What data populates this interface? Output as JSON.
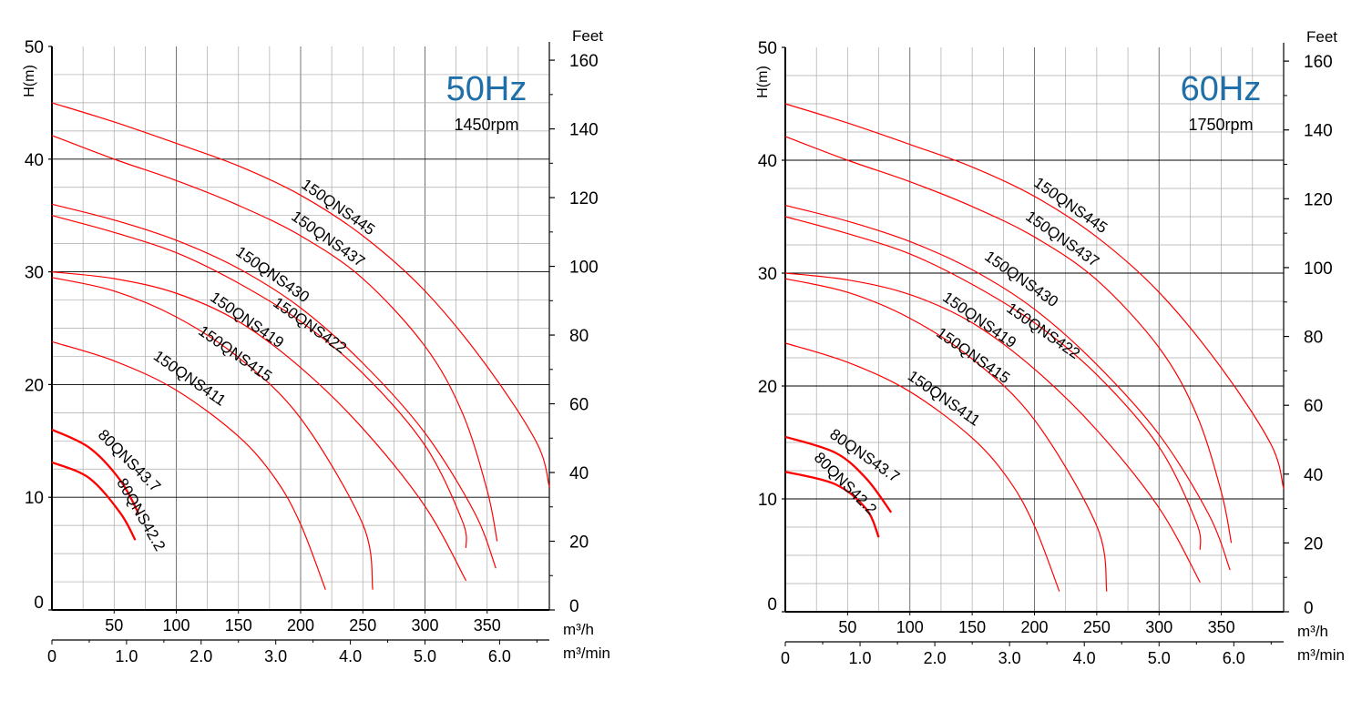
{
  "chart_data": [
    {
      "type": "line",
      "badge": "50Hz",
      "rpm": "1450rpm",
      "ylabel": "H(m)",
      "ylabel_right": "Feet",
      "xlabel": "m³/h",
      "xlabel_secondary": "m³/min",
      "xlim": [
        0,
        400
      ],
      "ylim": [
        0,
        50
      ],
      "y2lim": [
        0,
        164
      ],
      "grid": true,
      "x_ticks": [
        "50",
        "100",
        "150",
        "200",
        "250",
        "300",
        "350"
      ],
      "x_tick_values": [
        50,
        100,
        150,
        200,
        250,
        300,
        350
      ],
      "x2_ticks": [
        "0",
        "1.0",
        "2.0",
        "3.0",
        "4.0",
        "5.0",
        "6.0"
      ],
      "x2_tick_values": [
        0,
        1,
        2,
        3,
        4,
        5,
        6
      ],
      "y_ticks": [
        "0",
        "10",
        "20",
        "30",
        "40",
        "50"
      ],
      "y_tick_values": [
        0,
        10,
        20,
        30,
        40,
        50
      ],
      "y2_ticks": [
        "0",
        "20",
        "40",
        "60",
        "80",
        "100",
        "120",
        "140",
        "160"
      ],
      "y2_tick_values": [
        0,
        20,
        40,
        60,
        80,
        100,
        120,
        140,
        160
      ],
      "series": [
        {
          "name": "150QNS445",
          "color": "#ff0000",
          "width": 1.2,
          "x": [
            0,
            50,
            100,
            150,
            200,
            250,
            300,
            350,
            390,
            400
          ],
          "y": [
            45,
            43.3,
            41.4,
            39.4,
            36.8,
            33.2,
            28.3,
            21.6,
            14.8,
            10.9
          ]
        },
        {
          "name": "150QNS437",
          "color": "#ff0000",
          "width": 1.2,
          "x": [
            0,
            50,
            100,
            150,
            200,
            250,
            300,
            330,
            350,
            358
          ],
          "y": [
            42.1,
            40.0,
            38.1,
            35.9,
            33.2,
            29.4,
            23.4,
            17.5,
            10.6,
            6.1
          ]
        },
        {
          "name": "150QNS430",
          "color": "#ff0000",
          "width": 1.2,
          "x": [
            0,
            50,
            100,
            150,
            200,
            250,
            300,
            340,
            357
          ],
          "y": [
            36,
            34.6,
            32.8,
            30.3,
            26.8,
            21.9,
            15.7,
            8.6,
            3.7
          ]
        },
        {
          "name": "150QNS422",
          "color": "#ff0000",
          "width": 1.2,
          "x": [
            0,
            50,
            100,
            150,
            200,
            250,
            300,
            330,
            333
          ],
          "y": [
            35,
            33.5,
            31.7,
            29.0,
            25.6,
            21.0,
            14.6,
            7.9,
            5.5
          ]
        },
        {
          "name": "150QNS419",
          "color": "#ff0000",
          "width": 1.2,
          "x": [
            0,
            50,
            100,
            150,
            200,
            250,
            300,
            333
          ],
          "y": [
            30,
            29.4,
            28.1,
            25.6,
            21.5,
            16.1,
            9.2,
            2.6
          ]
        },
        {
          "name": "150QNS415",
          "color": "#ff0000",
          "width": 1.2,
          "x": [
            0,
            50,
            100,
            150,
            200,
            250,
            258
          ],
          "y": [
            29.5,
            28.3,
            26.0,
            22.4,
            17.0,
            7.6,
            1.8
          ]
        },
        {
          "name": "150QNS411",
          "color": "#ff0000",
          "width": 1.2,
          "x": [
            0,
            50,
            100,
            150,
            180,
            200,
            220
          ],
          "y": [
            23.8,
            22.1,
            19.5,
            15.4,
            11.6,
            7.6,
            1.8
          ]
        },
        {
          "name": "80QNS43.7",
          "color": "#ff0000",
          "width": 2.3,
          "x": [
            0,
            30,
            55,
            70
          ],
          "y": [
            16.0,
            14.4,
            11.5,
            8.5
          ]
        },
        {
          "name": "80QNS42.2",
          "color": "#ff0000",
          "width": 2.3,
          "x": [
            0,
            30,
            55,
            67
          ],
          "y": [
            13.1,
            11.7,
            8.6,
            6.2
          ]
        }
      ]
    },
    {
      "type": "line",
      "badge": "60Hz",
      "rpm": "1750rpm",
      "ylabel": "H(m)",
      "ylabel_right": "Feet",
      "xlabel": "m³/h",
      "xlabel_secondary": "m³/min",
      "xlim": [
        0,
        400
      ],
      "ylim": [
        0,
        50
      ],
      "y2lim": [
        0,
        164
      ],
      "grid": true,
      "x_ticks": [
        "50",
        "100",
        "150",
        "200",
        "250",
        "300",
        "350"
      ],
      "x_tick_values": [
        50,
        100,
        150,
        200,
        250,
        300,
        350
      ],
      "x2_ticks": [
        "0",
        "1.0",
        "2.0",
        "3.0",
        "4.0",
        "5.0",
        "6.0"
      ],
      "x2_tick_values": [
        0,
        1,
        2,
        3,
        4,
        5,
        6
      ],
      "y_ticks": [
        "0",
        "10",
        "20",
        "30",
        "40",
        "50"
      ],
      "y_tick_values": [
        0,
        10,
        20,
        30,
        40,
        50
      ],
      "y2_ticks": [
        "0",
        "20",
        "40",
        "60",
        "80",
        "100",
        "120",
        "140",
        "160"
      ],
      "y2_tick_values": [
        0,
        20,
        40,
        60,
        80,
        100,
        120,
        140,
        160
      ],
      "series": [
        {
          "name": "150QNS445",
          "color": "#ff0000",
          "width": 1.2,
          "x": [
            0,
            50,
            100,
            150,
            200,
            250,
            300,
            350,
            390,
            400
          ],
          "y": [
            45,
            43.3,
            41.4,
            39.4,
            36.8,
            33.2,
            28.3,
            21.6,
            14.8,
            10.9
          ]
        },
        {
          "name": "150QNS437",
          "color": "#ff0000",
          "width": 1.2,
          "x": [
            0,
            50,
            100,
            150,
            200,
            250,
            300,
            330,
            350,
            358
          ],
          "y": [
            42.1,
            40.0,
            38.1,
            35.9,
            33.2,
            29.4,
            23.4,
            17.5,
            10.6,
            6.1
          ]
        },
        {
          "name": "150QNS430",
          "color": "#ff0000",
          "width": 1.2,
          "x": [
            0,
            50,
            100,
            150,
            200,
            250,
            300,
            340,
            357
          ],
          "y": [
            36,
            34.6,
            32.8,
            30.3,
            26.8,
            21.9,
            15.7,
            8.6,
            3.7
          ]
        },
        {
          "name": "150QNS422",
          "color": "#ff0000",
          "width": 1.2,
          "x": [
            0,
            50,
            100,
            150,
            200,
            250,
            300,
            330,
            333
          ],
          "y": [
            35,
            33.5,
            31.7,
            29.0,
            25.6,
            21.0,
            14.6,
            7.9,
            5.5
          ]
        },
        {
          "name": "150QNS419",
          "color": "#ff0000",
          "width": 1.2,
          "x": [
            0,
            50,
            100,
            150,
            200,
            250,
            300,
            333
          ],
          "y": [
            30,
            29.4,
            28.1,
            25.6,
            21.5,
            16.1,
            9.2,
            2.6
          ]
        },
        {
          "name": "150QNS415",
          "color": "#ff0000",
          "width": 1.2,
          "x": [
            0,
            50,
            100,
            150,
            200,
            250,
            258
          ],
          "y": [
            29.5,
            28.3,
            26.0,
            22.4,
            17.0,
            7.6,
            1.8
          ]
        },
        {
          "name": "150QNS411",
          "color": "#ff0000",
          "width": 1.2,
          "x": [
            0,
            50,
            100,
            150,
            180,
            200,
            220
          ],
          "y": [
            23.8,
            22.1,
            19.5,
            15.4,
            11.6,
            7.6,
            1.8
          ]
        },
        {
          "name": "80QNS43.7",
          "color": "#ff0000",
          "width": 2.3,
          "x": [
            0,
            40,
            65,
            85
          ],
          "y": [
            15.5,
            14.1,
            11.8,
            8.8
          ]
        },
        {
          "name": "80QNS42.2",
          "color": "#ff0000",
          "width": 2.3,
          "x": [
            0,
            40,
            65,
            75
          ],
          "y": [
            12.4,
            11.3,
            9.1,
            6.6
          ]
        }
      ]
    }
  ],
  "colors": {
    "badge": "#1f6fa8",
    "curve": "#ff0000",
    "grid": "#aaaaaa",
    "grid_major": "#000000"
  }
}
